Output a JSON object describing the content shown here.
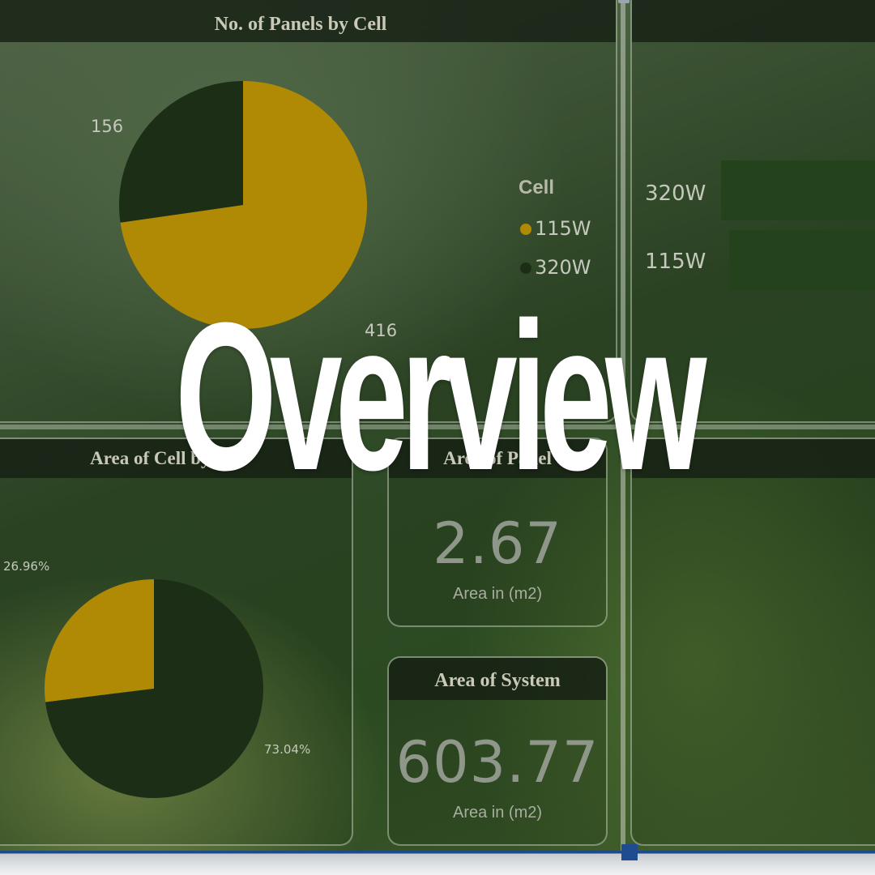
{
  "overlay": {
    "title": "Overview"
  },
  "panels_chart": {
    "title": "No. of Panels by Cell",
    "legend_title": "Cell",
    "legend": [
      {
        "label": "115W",
        "color": "#b08a05"
      },
      {
        "label": "320W",
        "color": "#1d2e17"
      }
    ]
  },
  "area_chart": {
    "title": "Area of Cell by Cell"
  },
  "bar_chart": {
    "title": ""
  },
  "card_area_panel": {
    "title": "Area of Panel",
    "value": "2.67",
    "subtitle": "Area in (m2)"
  },
  "card_area_system": {
    "title": "Area of System",
    "value": "603.77",
    "subtitle": "Area in (m2)"
  },
  "colors": {
    "gold": "#b08a05",
    "dark_green": "#1d2e17",
    "bar_green": "#24421c"
  },
  "chart_data": [
    {
      "type": "pie",
      "title": "No. of Panels by Cell",
      "legend_title": "Cell",
      "categories": [
        "115W",
        "320W"
      ],
      "values": [
        416,
        156
      ],
      "labels": [
        "416",
        "156"
      ]
    },
    {
      "type": "pie",
      "title": "Area of Cell by Cell",
      "categories": [
        "115W",
        "320W"
      ],
      "values": [
        26.96,
        73.04
      ],
      "labels": [
        "26.96%",
        "73.04%"
      ]
    },
    {
      "type": "bar",
      "orientation": "horizontal",
      "categories": [
        "320W",
        "115W"
      ],
      "values": [
        1,
        1
      ]
    }
  ]
}
